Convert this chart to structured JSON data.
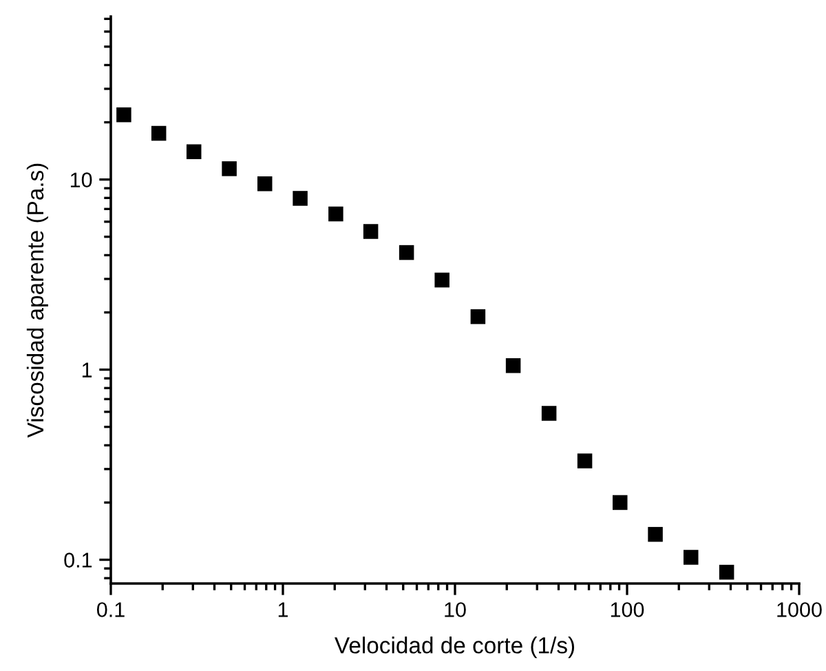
{
  "chart_data": {
    "type": "scatter",
    "xlabel": "Velocidad de corte (1/s)",
    "ylabel": "Viscosidad aparente (Pa.s)",
    "log": "xy",
    "marker": "square",
    "grid": false,
    "x": [
      0.119,
      0.19,
      0.304,
      0.488,
      0.785,
      1.26,
      2.03,
      3.24,
      5.23,
      8.41,
      13.6,
      21.8,
      35.2,
      56.8,
      91,
      146,
      235,
      379
    ],
    "series": [
      {
        "color": "#000000",
        "values": [
          21.9,
          17.5,
          14.0,
          11.4,
          9.5,
          7.96,
          6.59,
          5.33,
          4.13,
          2.96,
          1.9,
          1.05,
          0.589,
          0.331,
          0.2,
          0.136,
          0.103,
          0.086
        ]
      }
    ],
    "xlim": [
      0.1,
      1000
    ],
    "ylim": [
      0.075,
      72
    ],
    "xticks": [
      0.1,
      1,
      10,
      100,
      1000
    ],
    "yticks": [
      0.1,
      1,
      10
    ]
  }
}
